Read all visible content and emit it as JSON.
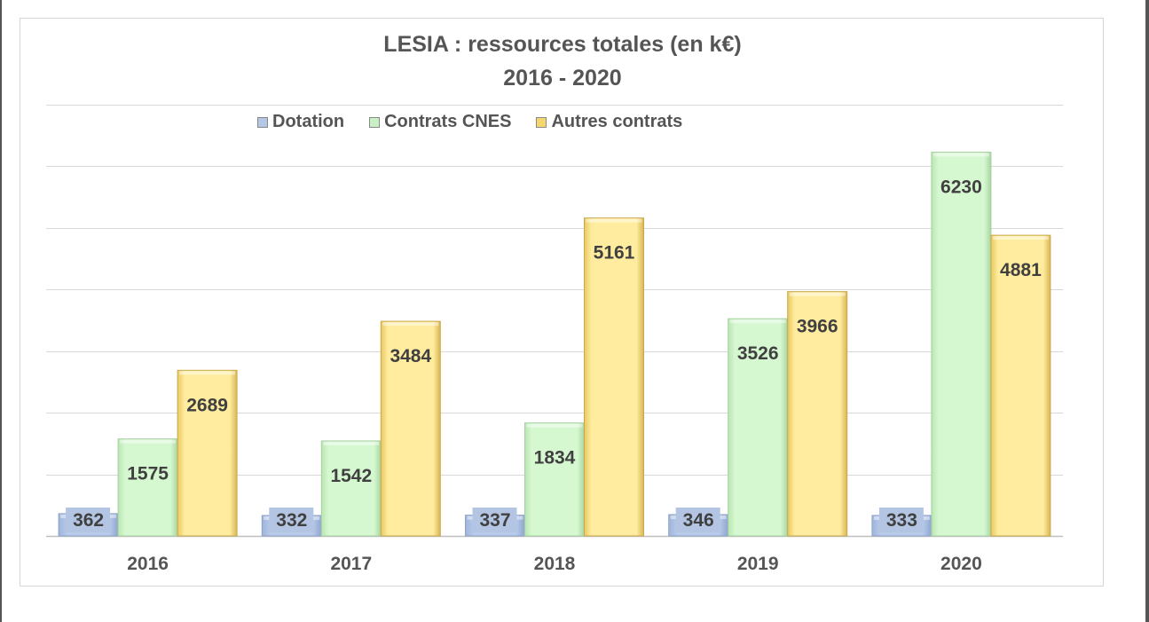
{
  "chart_data": {
    "type": "bar",
    "title": "LESIA : ressources totales (en k€)",
    "subtitle": "2016 - 2020",
    "xlabel": "",
    "ylabel": "",
    "categories": [
      "2016",
      "2017",
      "2018",
      "2019",
      "2020"
    ],
    "series": [
      {
        "name": "Dotation",
        "color": "#b4c7e7",
        "values": [
          362,
          332,
          337,
          346,
          333
        ]
      },
      {
        "name": "Contrats CNES",
        "color": "#d5f5d0",
        "values": [
          1575,
          1542,
          1834,
          3526,
          6230
        ]
      },
      {
        "name": "Autres contrats",
        "color": "#ffeb9c",
        "values": [
          2689,
          3484,
          5161,
          3966,
          4881
        ]
      }
    ],
    "ylim": [
      0,
      7000
    ],
    "grid": true,
    "y_ticks_shown": false,
    "legend_position": "top",
    "data_labels": true
  }
}
